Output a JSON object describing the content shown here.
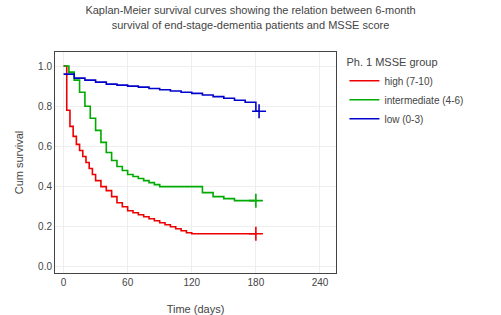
{
  "chart_data": {
    "type": "step",
    "title": "Kaplan-Meier survival curves showing the relation between 6-month\nsurvival of end-stage-dementia patients and MSSE score",
    "x_label": "Time (days)",
    "y_label": "Cum survival",
    "legend_title": "Ph. 1 MSSE group",
    "legend": "right",
    "grid": true,
    "marker": "cross",
    "xlim": [
      -8,
      255
    ],
    "ylim": [
      -0.03,
      1.07
    ],
    "xticks": [
      0,
      60,
      120,
      180,
      240
    ],
    "yticks": [
      {
        "value": 0.0,
        "label": "0.0"
      },
      0.2,
      0.4,
      0.6,
      0.8,
      {
        "value": 1.0,
        "label": "1.0"
      }
    ],
    "series": [
      {
        "name": "high (7-10)",
        "color": "#ee0000",
        "x": [
          0,
          3,
          6,
          9,
          12,
          15,
          18,
          21,
          24,
          27,
          30,
          35,
          40,
          45,
          50,
          55,
          60,
          65,
          70,
          75,
          80,
          85,
          90,
          95,
          100,
          105,
          110,
          115,
          120,
          130,
          140,
          150,
          160,
          170,
          180
        ],
        "values": [
          1.0,
          0.78,
          0.7,
          0.65,
          0.61,
          0.58,
          0.55,
          0.52,
          0.49,
          0.46,
          0.43,
          0.4,
          0.38,
          0.35,
          0.32,
          0.3,
          0.28,
          0.27,
          0.26,
          0.25,
          0.24,
          0.23,
          0.22,
          0.21,
          0.2,
          0.19,
          0.18,
          0.17,
          0.165,
          0.165,
          0.165,
          0.165,
          0.165,
          0.165,
          0.165
        ]
      },
      {
        "name": "intermediate (4-6)",
        "color": "#00aa00",
        "x": [
          0,
          5,
          10,
          15,
          20,
          25,
          30,
          35,
          40,
          45,
          50,
          55,
          60,
          65,
          70,
          75,
          80,
          85,
          90,
          95,
          100,
          105,
          110,
          120,
          130,
          140,
          150,
          160,
          170,
          180
        ],
        "values": [
          1.0,
          0.97,
          0.93,
          0.87,
          0.8,
          0.74,
          0.68,
          0.62,
          0.57,
          0.53,
          0.5,
          0.48,
          0.46,
          0.45,
          0.44,
          0.43,
          0.42,
          0.41,
          0.4,
          0.4,
          0.4,
          0.4,
          0.4,
          0.4,
          0.37,
          0.35,
          0.34,
          0.33,
          0.33,
          0.33
        ]
      },
      {
        "name": "low (0-3)",
        "color": "#0000cc",
        "x": [
          0,
          10,
          20,
          30,
          40,
          50,
          60,
          70,
          80,
          90,
          100,
          110,
          120,
          130,
          140,
          150,
          160,
          170,
          180,
          183
        ],
        "values": [
          0.96,
          0.94,
          0.93,
          0.92,
          0.91,
          0.905,
          0.9,
          0.895,
          0.888,
          0.882,
          0.876,
          0.87,
          0.864,
          0.856,
          0.848,
          0.84,
          0.83,
          0.82,
          0.775,
          0.775
        ]
      }
    ]
  }
}
